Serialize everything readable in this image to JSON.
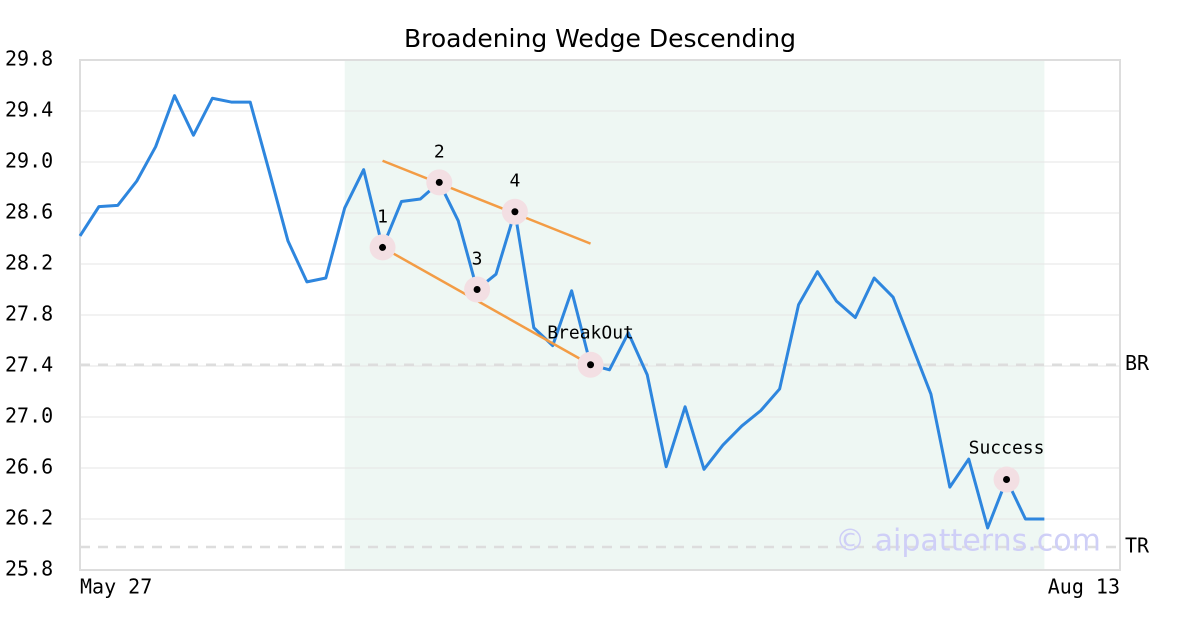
{
  "chart_data": {
    "type": "line",
    "title": "Broadening Wedge Descending",
    "categories": [
      "May 27",
      null,
      null,
      null,
      null,
      null,
      null,
      null,
      null,
      null,
      null,
      null,
      null,
      null,
      null,
      null,
      null,
      null,
      null,
      null,
      null,
      null,
      null,
      null,
      null,
      null,
      null,
      null,
      null,
      null,
      null,
      null,
      null,
      null,
      null,
      null,
      null,
      null,
      null,
      null,
      null,
      null,
      null,
      null,
      null,
      null,
      null,
      null,
      null,
      null,
      null,
      null,
      null,
      null,
      null,
      "Aug 13"
    ],
    "series": [
      {
        "color": "#2e86de",
        "values": [
          28.42,
          28.65,
          28.66,
          28.85,
          29.12,
          29.52,
          29.21,
          29.5,
          29.47,
          29.47,
          28.93,
          28.38,
          28.06,
          28.09,
          28.64,
          28.94,
          28.33,
          28.69,
          28.71,
          28.84,
          28.54,
          28.0,
          28.12,
          28.61,
          27.7,
          27.56,
          27.99,
          27.41,
          27.37,
          27.66,
          27.33,
          26.61,
          27.08,
          26.59,
          26.78,
          26.93,
          27.05,
          27.22,
          27.88,
          28.14,
          27.91,
          27.78,
          28.09,
          27.94,
          27.56,
          27.18,
          26.45,
          26.67,
          26.13,
          26.51,
          26.2,
          26.2,
          null,
          null,
          null,
          null
        ]
      }
    ],
    "ylim": [
      25.8,
      29.8
    ],
    "yticks": [
      25.8,
      26.2,
      26.6,
      {
        "value": 27,
        "label": "27.0"
      },
      27.4,
      27.8,
      28.2,
      28.6,
      {
        "value": 29,
        "label": "29.0"
      },
      29.4,
      29.8
    ],
    "grid": true,
    "shaded_range": [
      14,
      51
    ],
    "trendlines": [
      {
        "color": "#f39c45",
        "points": [
          [
            16,
            29.01
          ],
          [
            27,
            28.36
          ]
        ]
      },
      {
        "color": "#f39c45",
        "points": [
          [
            16,
            28.33
          ],
          [
            27,
            27.41
          ]
        ]
      }
    ],
    "annotations": [
      {
        "label": "1",
        "x": 16,
        "y": 28.33
      },
      {
        "label": "2",
        "x": 19,
        "y": 28.84
      },
      {
        "label": "3",
        "x": 21,
        "y": 28.0
      },
      {
        "label": "4",
        "x": 23,
        "y": 28.61
      },
      {
        "label": "BreakOut",
        "x": 27,
        "y": 27.41
      },
      {
        "label": "Success",
        "x": 49,
        "y": 26.51
      }
    ],
    "levels": [
      {
        "label": "BR",
        "value": 27.41
      },
      {
        "label": "TR",
        "value": 25.98
      }
    ],
    "watermark": "© aipatterns.com"
  }
}
